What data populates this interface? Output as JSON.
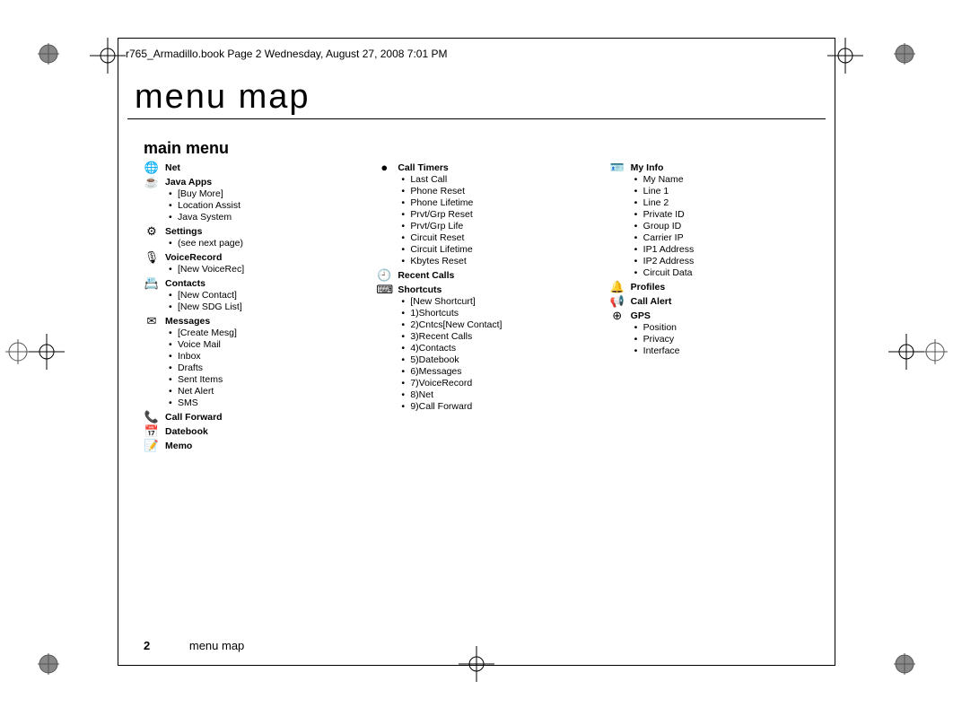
{
  "header_line": "r765_Armadillo.book  Page 2  Wednesday, August 27, 2008  7:01 PM",
  "title": "menu map",
  "subtitle": "main menu",
  "footer_page": "2",
  "footer_text": "menu map",
  "columns": [
    [
      {
        "icon": "🌐",
        "title": "Net",
        "items": []
      },
      {
        "icon": "☕",
        "title": "Java Apps",
        "items": [
          "[Buy More]",
          "Location Assist",
          "Java System"
        ]
      },
      {
        "icon": "⚙",
        "title": "Settings",
        "items": [
          "(see next page)"
        ]
      },
      {
        "icon": "🎙",
        "title": "VoiceRecord",
        "items": [
          "[New VoiceRec]"
        ]
      },
      {
        "icon": "📇",
        "title": "Contacts",
        "items": [
          "[New Contact]",
          "[New SDG List]"
        ]
      },
      {
        "icon": "✉",
        "title": "Messages",
        "items": [
          "[Create Mesg]",
          "Voice Mail",
          "Inbox",
          "Drafts",
          "Sent Items",
          "Net Alert",
          "SMS"
        ]
      },
      {
        "icon": "📞",
        "title": "Call Forward",
        "items": []
      },
      {
        "icon": "📅",
        "title": "Datebook",
        "items": []
      },
      {
        "icon": "📝",
        "title": "Memo",
        "items": []
      }
    ],
    [
      {
        "icon": "●",
        "title": "Call Timers",
        "items": [
          "Last Call",
          "Phone Reset",
          "Phone Lifetime",
          "Prvt/Grp Reset",
          "Prvt/Grp Life",
          "Circuit Reset",
          "Circuit Lifetime",
          "Kbytes Reset"
        ]
      },
      {
        "icon": "🕘",
        "title": "Recent Calls",
        "items": []
      },
      {
        "icon": "⌨",
        "title": "Shortcuts",
        "items": [
          "[New Shortcurt]",
          "1)Shortcuts",
          "2)Cntcs[New Contact]",
          "3)Recent Calls",
          "4)Contacts",
          "5)Datebook",
          "6)Messages",
          "7)VoiceRecord",
          "8)Net",
          "9)Call Forward"
        ]
      }
    ],
    [
      {
        "icon": "🪪",
        "title": "My Info",
        "items": [
          "My Name",
          "Line 1",
          "Line 2",
          "Private ID",
          "Group ID",
          "Carrier IP",
          "IP1 Address",
          "IP2 Address",
          "Circuit Data"
        ]
      },
      {
        "icon": "🔔",
        "title": "Profiles",
        "items": []
      },
      {
        "icon": "📢",
        "title": "Call Alert",
        "items": []
      },
      {
        "icon": "⊕",
        "title": "GPS",
        "items": [
          "Position",
          "Privacy",
          "Interface"
        ]
      }
    ]
  ]
}
